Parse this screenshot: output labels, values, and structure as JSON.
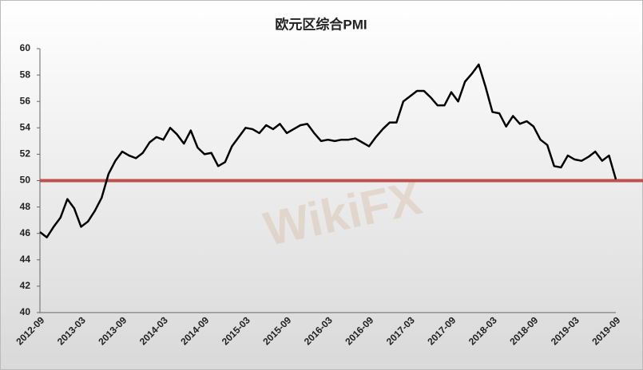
{
  "chart_data": {
    "type": "line",
    "title": "欧元区综合PMI",
    "watermark": "WikiFX",
    "categories": [
      "2012-09",
      null,
      null,
      null,
      null,
      null,
      "2013-03",
      null,
      null,
      null,
      null,
      null,
      "2013-09",
      null,
      null,
      null,
      null,
      null,
      "2014-03",
      null,
      null,
      null,
      null,
      null,
      "2014-09",
      null,
      null,
      null,
      null,
      null,
      "2015-03",
      null,
      null,
      null,
      null,
      null,
      "2015-09",
      null,
      null,
      null,
      null,
      null,
      "2016-03",
      null,
      null,
      null,
      null,
      null,
      "2016-09",
      null,
      null,
      null,
      null,
      null,
      "2017-03",
      null,
      null,
      null,
      null,
      null,
      "2017-09",
      null,
      null,
      null,
      null,
      null,
      "2018-03",
      null,
      null,
      null,
      null,
      null,
      "2018-09",
      null,
      null,
      null,
      null,
      null,
      "2019-03",
      null,
      null,
      null,
      null,
      null,
      "2019-09"
    ],
    "series": [
      {
        "name": "PMI",
        "color": "#000000",
        "values": [
          46.1,
          45.7,
          46.5,
          47.2,
          48.6,
          47.9,
          46.5,
          46.9,
          47.7,
          48.7,
          50.5,
          51.5,
          52.2,
          51.9,
          51.7,
          52.1,
          52.9,
          53.3,
          53.1,
          54.0,
          53.5,
          52.8,
          53.8,
          52.5,
          52.0,
          52.1,
          51.1,
          51.4,
          52.6,
          53.3,
          54.0,
          53.9,
          53.6,
          54.2,
          53.9,
          54.3,
          53.6,
          53.9,
          54.2,
          54.3,
          53.6,
          53.0,
          53.1,
          53.0,
          53.1,
          53.1,
          53.2,
          52.9,
          52.6,
          53.3,
          53.9,
          54.4,
          54.4,
          56.0,
          56.4,
          56.8,
          56.8,
          56.3,
          55.7,
          55.7,
          56.7,
          56.0,
          57.5,
          58.1,
          58.8,
          57.1,
          55.2,
          55.1,
          54.1,
          54.9,
          54.3,
          54.5,
          54.1,
          53.1,
          52.7,
          51.1,
          51.0,
          51.9,
          51.6,
          51.5,
          51.8,
          52.2,
          51.5,
          51.9,
          50.1
        ]
      }
    ],
    "reference_line": {
      "value": 50,
      "color": "#c0504d"
    },
    "ylim": [
      40,
      60
    ],
    "yticks": [
      40,
      42,
      44,
      46,
      48,
      50,
      52,
      54,
      56,
      58,
      60
    ],
    "grid": false
  }
}
